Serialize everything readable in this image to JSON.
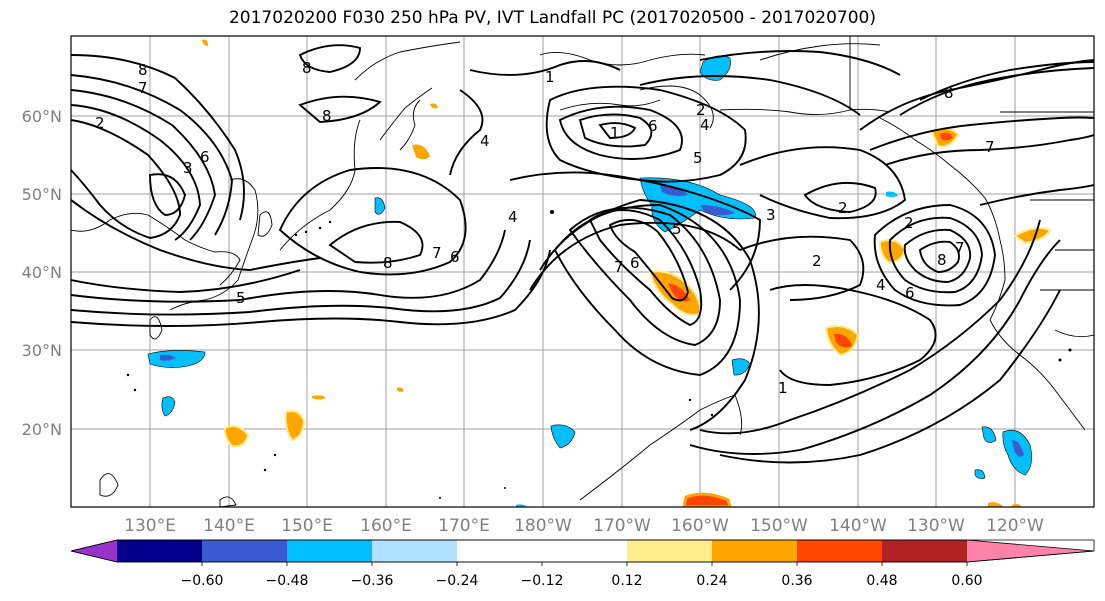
{
  "title": "2017020200 F030 250 hPa PV, IVT Landfall PC (2017020500 - 2017020700)",
  "lat_labels": [
    "60°N",
    "50°N",
    "40°N",
    "30°N",
    "20°N"
  ],
  "lon_labels": [
    "130°E",
    "140°E",
    "150°E",
    "160°E",
    "170°E",
    "180°W",
    "170°W",
    "160°W",
    "150°W",
    "140°W",
    "130°W",
    "120°W"
  ],
  "colorbar": {
    "colors": [
      "#9932cc",
      "#00008b",
      "#3a5bcf",
      "#00bfff",
      "#b0e2ff",
      "#ffffff",
      "#ffec8b",
      "#ffa500",
      "#ff4500",
      "#b22222",
      "#ff82ab"
    ],
    "tick_labels": [
      "−0.60",
      "−0.48",
      "−0.36",
      "−0.24",
      "−0.12",
      "0.12",
      "0.24",
      "0.36",
      "0.48",
      "0.60"
    ]
  },
  "contour_labels": [
    "8",
    "7",
    "2",
    "6",
    "3",
    "5",
    "8",
    "8",
    "4",
    "1",
    "1",
    "6",
    "2",
    "5",
    "8",
    "7",
    "6",
    "4",
    "7",
    "6",
    "5",
    "3",
    "4",
    "2",
    "1",
    "2",
    "8",
    "7",
    "8",
    "7",
    "6",
    "4",
    "2"
  ]
}
